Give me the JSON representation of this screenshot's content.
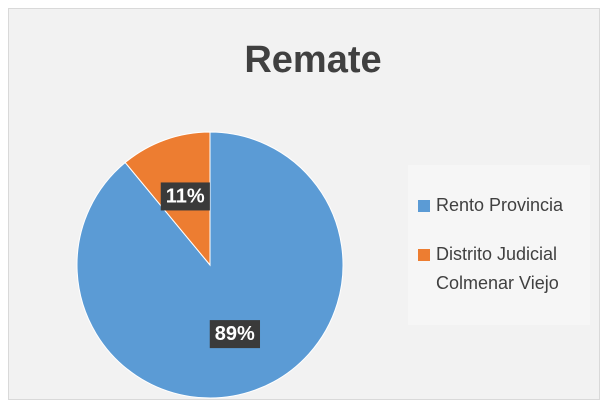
{
  "chart_data": {
    "type": "pie",
    "title": "Remate",
    "categories": [
      "Rento Provincia",
      "Distrito Judicial Colmenar Viejo"
    ],
    "values": [
      89,
      11
    ],
    "value_labels": [
      "89%",
      "11%"
    ],
    "colors": [
      "#5b9bd5",
      "#ed7d31"
    ],
    "legend": "right"
  }
}
